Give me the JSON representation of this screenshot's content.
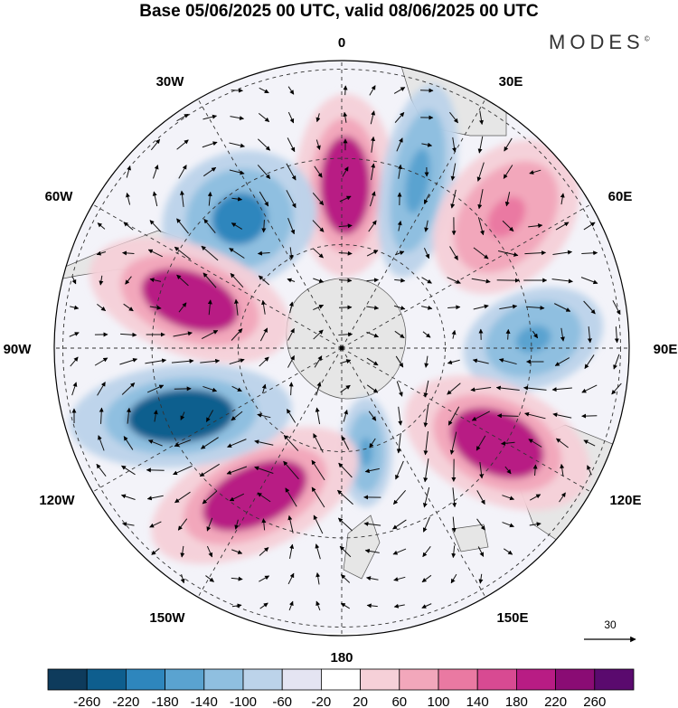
{
  "title": "Base 05/06/2025 00 UTC, valid 08/06/2025 00 UTC",
  "brand": "MODES",
  "brand_mark": "©",
  "longitude_labels": {
    "north": "0",
    "north_east": "30E",
    "east_upper": "60E",
    "east": "90E",
    "east_lower": "120E",
    "south_east": "150E",
    "south": "180",
    "south_west": "150W",
    "west_lower": "120W",
    "west": "90W",
    "west_upper": "60W",
    "north_west": "30W"
  },
  "reference_vector": {
    "label": "30"
  },
  "colorbar": {
    "colors": [
      "#0e3b5c",
      "#0e5e8e",
      "#2e86bd",
      "#5aa3d0",
      "#8fbfe0",
      "#bcd3ea",
      "#e4e4f2",
      "#ffffff",
      "#f6d0d8",
      "#f2a7bb",
      "#ea79a2",
      "#d84a92",
      "#b81c84",
      "#8a0c74",
      "#5a0a6e"
    ],
    "tick_labels": [
      "-260",
      "-220",
      "-180",
      "-140",
      "-100",
      "-60",
      "-20",
      "20",
      "60",
      "100",
      "140",
      "180",
      "220",
      "260"
    ]
  },
  "anomaly_centers": [
    {
      "value": 240,
      "color": "#b81c84"
    },
    {
      "value": -170,
      "color": "#2e86bd"
    },
    {
      "value": 230,
      "color": "#b81c84"
    },
    {
      "value": -150,
      "color": "#5aa3d0"
    },
    {
      "value": 120,
      "color": "#ea79a2"
    },
    {
      "value": -120,
      "color": "#5aa3d0"
    },
    {
      "value": 240,
      "color": "#b81c84"
    },
    {
      "value": -120,
      "color": "#5aa3d0"
    },
    {
      "value": 240,
      "color": "#b81c84"
    },
    {
      "value": -230,
      "color": "#0e5e8e"
    }
  ]
}
